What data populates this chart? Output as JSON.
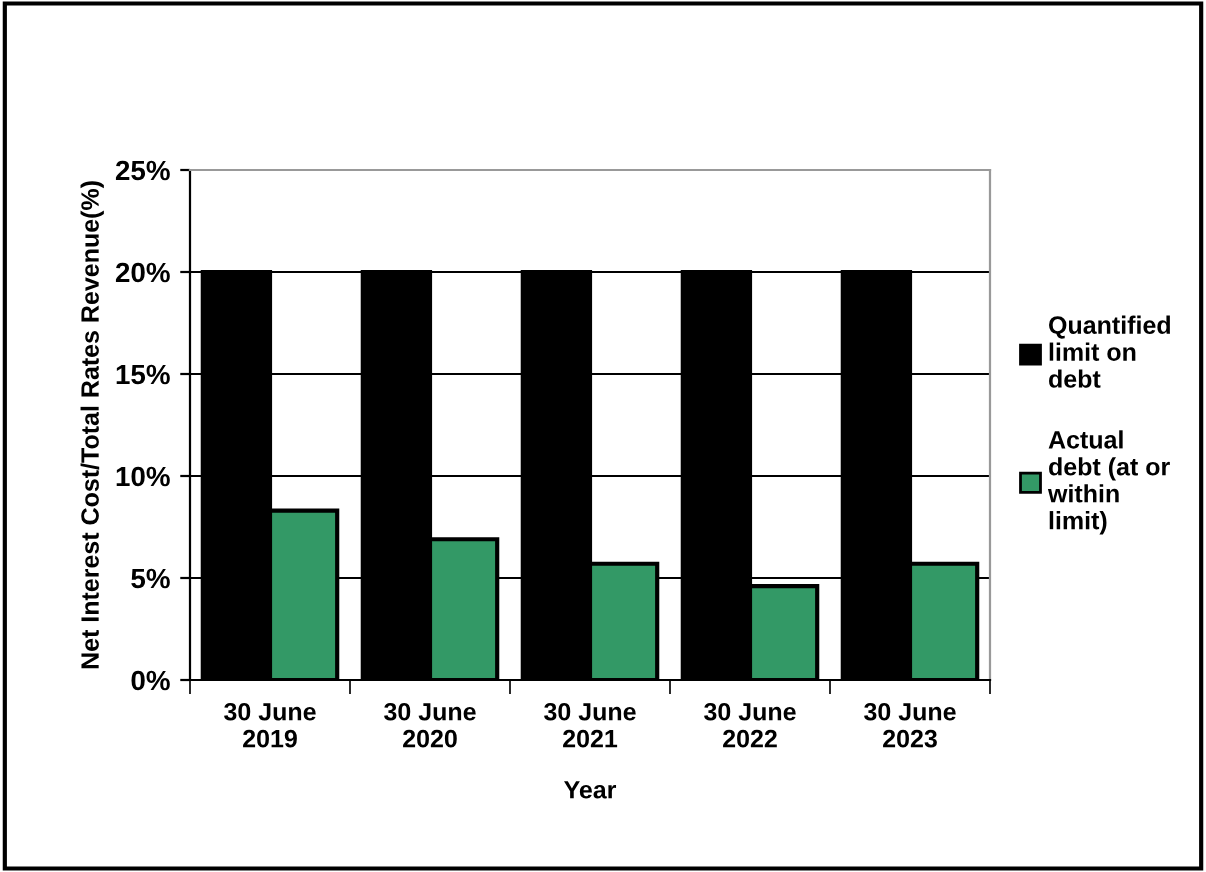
{
  "chart_data": {
    "type": "bar",
    "xlabel": "Year",
    "ylabel": "Net Interest Cost/Total Rates Revenue(%)",
    "categories": [
      "30 June\n2019",
      "30 June\n2020",
      "30 June\n2021",
      "30 June\n2022",
      "30 June\n2023"
    ],
    "series": [
      {
        "name": "Quantified\nlimit on\ndebt",
        "color": "#000000",
        "values": [
          20,
          20,
          20,
          20,
          20
        ]
      },
      {
        "name": "Actual\ndebt (at or\nwithin\nlimit)",
        "color": "#339966",
        "values": [
          8.3,
          6.9,
          5.7,
          4.6,
          5.7
        ]
      }
    ],
    "ylim": [
      0,
      25
    ],
    "yticks": [
      {
        "value": 0,
        "label": "0%"
      },
      {
        "value": 5,
        "label": "5%"
      },
      {
        "value": 10,
        "label": "10%"
      },
      {
        "value": 15,
        "label": "15%"
      },
      {
        "value": 20,
        "label": "20%"
      },
      {
        "value": 25,
        "label": "25%"
      }
    ],
    "grid": "y",
    "legend": "right"
  }
}
